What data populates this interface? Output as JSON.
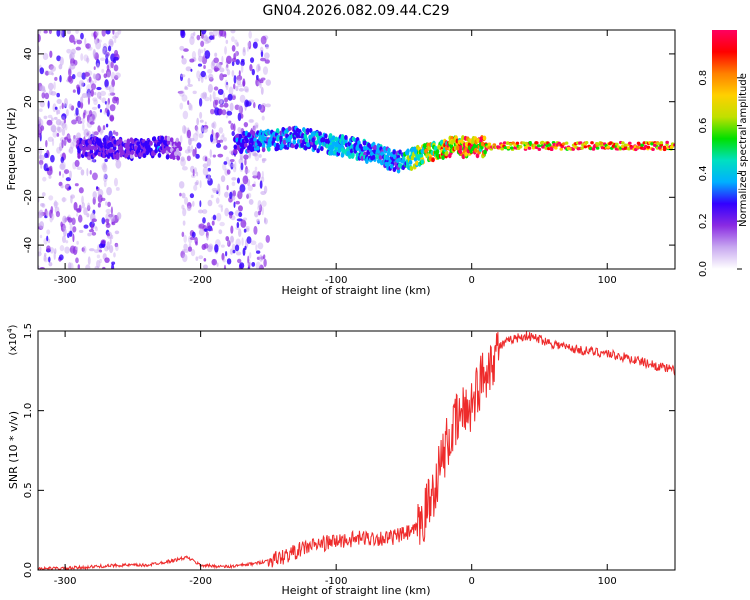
{
  "title": "GN04.2026.082.09.44.C29",
  "chart_data": [
    {
      "type": "heatmap",
      "xlabel": "Height of straight line (km)",
      "ylabel": "Frequency (Hz)",
      "xlim": [
        -320,
        150
      ],
      "ylim": [
        -50,
        50
      ],
      "xticks": [
        -300,
        -200,
        -100,
        0,
        100
      ],
      "yticks": [
        -40,
        -20,
        0,
        20,
        40
      ],
      "colorbar": {
        "label": "Normalized spectral amplitude",
        "range": [
          0,
          1
        ],
        "ticks": [
          0.0,
          0.2,
          0.4,
          0.6,
          0.8
        ],
        "colors": [
          "#ffffff",
          "#c8a8f0",
          "#8a2be2",
          "#3300ff",
          "#00b0ff",
          "#00e0c0",
          "#00e000",
          "#c0e000",
          "#ffd000",
          "#ff8000",
          "#ff0000",
          "#ff0060"
        ]
      },
      "ridge": {
        "x": [
          -290,
          -270,
          -250,
          -230,
          -210,
          -190,
          -170,
          -150,
          -130,
          -110,
          -90,
          -70,
          -55,
          -45,
          -35,
          -25,
          -15,
          -5,
          5,
          20,
          50,
          100,
          150
        ],
        "frequency": [
          0,
          1,
          0,
          1,
          0,
          0,
          3,
          4,
          5,
          3,
          1,
          -2,
          -5,
          -4,
          -2,
          0,
          1,
          1,
          1,
          1.5,
          1.5,
          1.5,
          1.5
        ],
        "amplitude": [
          0.25,
          0.3,
          0.25,
          0.3,
          0.1,
          0.1,
          0.35,
          0.4,
          0.4,
          0.45,
          0.45,
          0.4,
          0.35,
          0.6,
          0.75,
          0.85,
          0.95,
          0.95,
          0.98,
          0.98,
          1.0,
          1.0,
          1.0
        ]
      },
      "noise_bands": [
        [
          -320,
          -260
        ],
        [
          -215,
          -150
        ]
      ]
    },
    {
      "type": "line",
      "xlabel": "Height of straight line (km)",
      "ylabel": "SNR (10 * v/v)",
      "y_multiplier": "(x10",
      "y_multiplier_exp": "4",
      "y_multiplier_close": ")",
      "xlim": [
        -320,
        150
      ],
      "ylim": [
        0,
        1.5
      ],
      "xticks": [
        -300,
        -200,
        -100,
        0,
        100
      ],
      "yticks": [
        0.0,
        0.5,
        1.0,
        1.5
      ],
      "color": "#ee2b2b",
      "series": [
        {
          "x": [
            -320,
            -300,
            -280,
            -260,
            -240,
            -220,
            -210,
            -200,
            -180,
            -160,
            -140,
            -120,
            -100,
            -80,
            -60,
            -40,
            -30,
            -20,
            -10,
            0,
            10,
            20,
            30,
            40,
            50,
            60,
            80,
            100,
            120,
            150
          ],
          "values": [
            0.01,
            0.01,
            0.02,
            0.03,
            0.03,
            0.06,
            0.08,
            0.03,
            0.02,
            0.04,
            0.08,
            0.15,
            0.18,
            0.2,
            0.2,
            0.25,
            0.45,
            0.75,
            0.95,
            1.05,
            1.25,
            1.4,
            1.45,
            1.47,
            1.45,
            1.42,
            1.38,
            1.36,
            1.32,
            1.25
          ]
        }
      ]
    }
  ]
}
